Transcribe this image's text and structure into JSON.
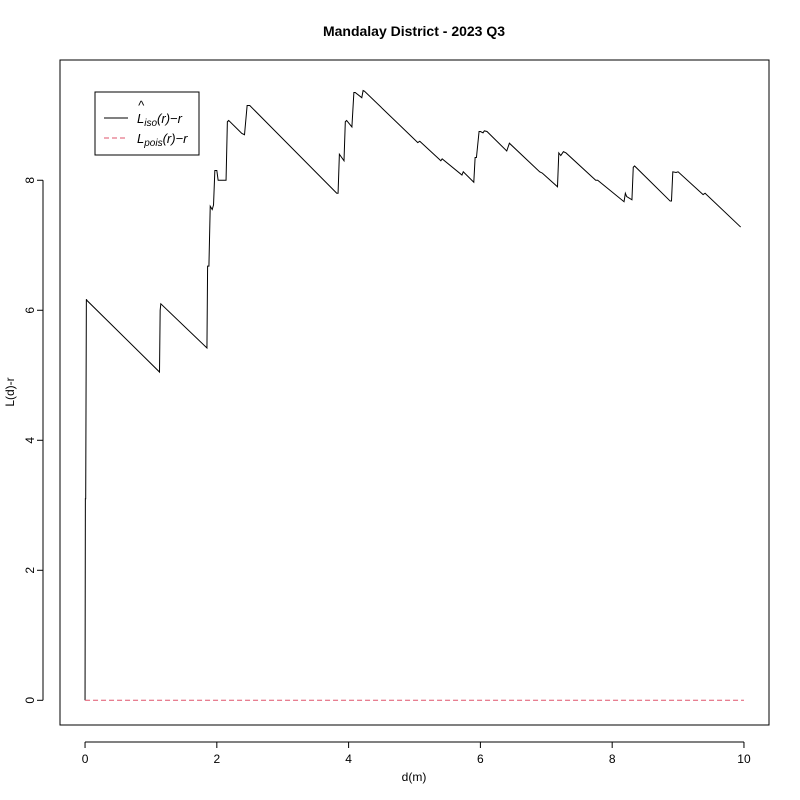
{
  "chart_data": {
    "type": "line",
    "title": "Mandalay District - 2023 Q3",
    "xlabel": "d(m)",
    "ylabel": "L(d)-r",
    "xlim": [
      -0.38,
      10.38
    ],
    "ylim": [
      -0.38,
      9.85
    ],
    "xticks": [
      0,
      2,
      4,
      6,
      8,
      10
    ],
    "yticks": [
      0,
      2,
      4,
      6,
      8
    ],
    "grid": false,
    "legend_position": "top-left",
    "legend": [
      {
        "hat": "^",
        "main": "L",
        "sub": "iso",
        "tail": "(r)−r",
        "color": "#000000",
        "dash": "solid"
      },
      {
        "hat": "",
        "main": "L",
        "sub": "pois",
        "tail": "(r)−r",
        "color": "#df536b",
        "dash": "dashed"
      }
    ],
    "series": [
      {
        "name": "L_iso(r)-r",
        "color": "#000000",
        "dash": "solid",
        "x": [
          0,
          0.005,
          0.01,
          0.02,
          0.03,
          1.13,
          1.14,
          1.15,
          1.85,
          1.86,
          1.88,
          1.9,
          1.93,
          1.95,
          1.97,
          2.0,
          2.02,
          2.14,
          2.16,
          2.18,
          2.38,
          2.42,
          2.46,
          2.5,
          3.82,
          3.84,
          3.86,
          3.93,
          3.95,
          3.97,
          4.05,
          4.08,
          4.1,
          4.2,
          4.22,
          4.24,
          5.05,
          5.08,
          5.4,
          5.42,
          5.72,
          5.74,
          5.9,
          5.92,
          5.94,
          5.98,
          6.0,
          6.04,
          6.06,
          6.1,
          6.4,
          6.44,
          6.9,
          6.94,
          7.17,
          7.19,
          7.22,
          7.26,
          7.3,
          7.75,
          7.78,
          8.18,
          8.2,
          8.22,
          8.3,
          8.32,
          8.34,
          8.88,
          8.9,
          8.92,
          8.97,
          9.0,
          9.38,
          9.41,
          9.95
        ],
        "y": [
          0,
          3.1,
          3.1,
          6.17,
          6.15,
          5.05,
          6.0,
          6.1,
          5.42,
          6.68,
          6.68,
          7.6,
          7.55,
          7.62,
          8.15,
          8.15,
          8.0,
          8.0,
          8.9,
          8.92,
          8.72,
          8.7,
          9.15,
          9.15,
          7.8,
          7.8,
          8.4,
          8.3,
          8.9,
          8.92,
          8.82,
          9.35,
          9.35,
          9.27,
          9.38,
          9.37,
          8.58,
          8.6,
          8.3,
          8.33,
          8.08,
          8.13,
          7.97,
          8.35,
          8.35,
          8.75,
          8.75,
          8.73,
          8.76,
          8.75,
          8.45,
          8.57,
          8.13,
          8.11,
          7.9,
          8.42,
          8.38,
          8.44,
          8.42,
          8.0,
          8.0,
          7.67,
          7.8,
          7.75,
          7.7,
          8.2,
          8.22,
          7.68,
          7.68,
          8.13,
          8.12,
          8.13,
          7.78,
          7.8,
          7.28
        ]
      },
      {
        "name": "L_pois(r)-r",
        "color": "#df536b",
        "dash": "dashed",
        "x": [
          0,
          10
        ],
        "y": [
          0,
          0
        ]
      }
    ]
  }
}
